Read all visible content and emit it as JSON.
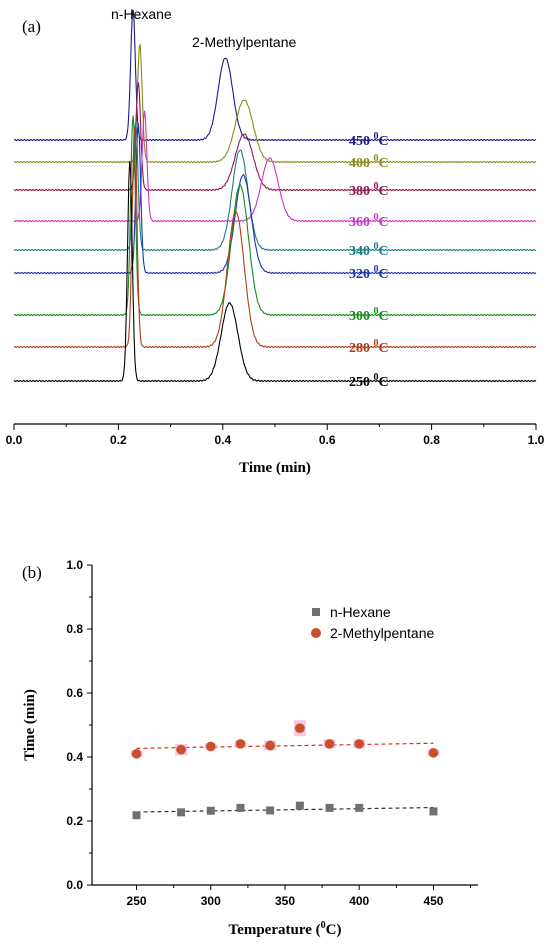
{
  "chart_data": [
    {
      "panel": "(a)",
      "type": "line",
      "xlabel": "Time (min)",
      "ylabel": "",
      "xlim": [
        0.0,
        1.0
      ],
      "x_ticks": [
        "0.0",
        "0.2",
        "0.4",
        "0.6",
        "0.8",
        "1.0"
      ],
      "annotations": [
        "n-Hexane",
        "2-Methylpentane"
      ],
      "label_sup": "0",
      "label_unit": "C",
      "series": [
        {
          "label": "450",
          "color": "#1a1a8c",
          "t1": 0.228,
          "h1": 130,
          "t2": 0.405,
          "h2": 82,
          "w2": 0.014
        },
        {
          "label": "400",
          "color": "#8c8c1a",
          "t1": 0.241,
          "h1": 118,
          "t2": 0.441,
          "h2": 62,
          "w2": 0.017
        },
        {
          "label": "380",
          "color": "#8c1a4d",
          "t1": 0.238,
          "h1": 108,
          "t2": 0.441,
          "h2": 56,
          "w2": 0.017
        },
        {
          "label": "360",
          "color": "#cc33cc",
          "t1": 0.25,
          "h1": 110,
          "t2": 0.49,
          "h2": 63,
          "w2": 0.016
        },
        {
          "label": "340",
          "color": "#1a8080",
          "t1": 0.233,
          "h1": 128,
          "t2": 0.433,
          "h2": 100,
          "w2": 0.015
        },
        {
          "label": "320",
          "color": "#1a33b3",
          "t1": 0.238,
          "h1": 150,
          "t2": 0.439,
          "h2": 98,
          "w2": 0.015
        },
        {
          "label": "300",
          "color": "#1a8c1a",
          "t1": 0.228,
          "h1": 200,
          "t2": 0.433,
          "h2": 130,
          "w2": 0.016
        },
        {
          "label": "280",
          "color": "#b33a1a",
          "t1": 0.231,
          "h1": 222,
          "t2": 0.425,
          "h2": 135,
          "w2": 0.016
        },
        {
          "label": "250",
          "color": "#000000",
          "t1": 0.222,
          "h1": 220,
          "t2": 0.413,
          "h2": 78,
          "w2": 0.016
        }
      ]
    },
    {
      "panel": "(b)",
      "type": "scatter",
      "xlabel": "Temperature (",
      "xlabel_sup": "0",
      "xlabel_end": "C)",
      "ylabel": "Time (min)",
      "xlim": [
        220,
        480
      ],
      "ylim": [
        0.0,
        1.0
      ],
      "x_ticks": [
        250,
        300,
        350,
        400,
        450
      ],
      "y_ticks": [
        "0.0",
        "0.2",
        "0.4",
        "0.6",
        "0.8",
        "1.0"
      ],
      "legend_position": "top-right",
      "x": [
        250,
        280,
        300,
        320,
        340,
        360,
        380,
        400,
        450
      ],
      "series": [
        {
          "name": "n-Hexane",
          "color": "#707070",
          "marker": "square",
          "values": [
            0.218,
            0.227,
            0.232,
            0.241,
            0.233,
            0.248,
            0.241,
            0.241,
            0.23
          ],
          "trend": [
            0.228,
            0.242
          ]
        },
        {
          "name": "2-Methylpentane",
          "color": "#c8502a",
          "marker": "circle",
          "values": [
            0.41,
            0.423,
            0.433,
            0.441,
            0.436,
            0.49,
            0.441,
            0.441,
            0.413
          ],
          "errors": [
            0.01,
            0.018,
            0.01,
            0.01,
            0.016,
            0.025,
            0.014,
            0.014,
            0.01
          ],
          "trend": [
            0.427,
            0.443
          ]
        }
      ]
    }
  ]
}
